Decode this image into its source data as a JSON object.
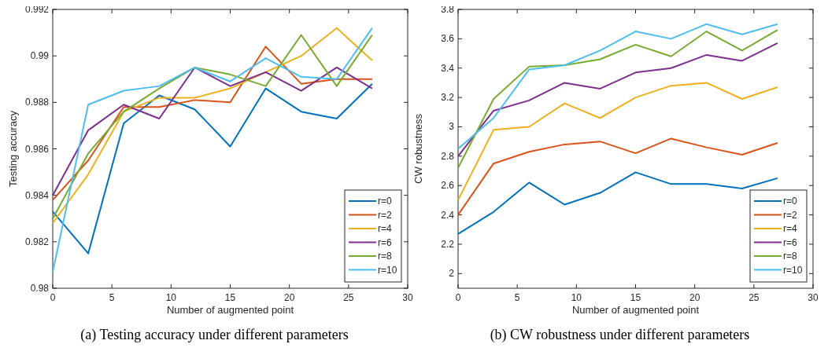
{
  "chart_data": [
    {
      "type": "line",
      "xlabel": "Number of augmented point",
      "ylabel": "Testing accuracy",
      "annotations": [
        "(a) Testing accuracy under different parameters"
      ],
      "x": [
        0,
        3,
        6,
        9,
        12,
        15,
        18,
        21,
        24,
        27
      ],
      "xlim": [
        0,
        30
      ],
      "xticks": [
        0,
        5,
        10,
        15,
        20,
        25,
        30
      ],
      "ylim": [
        0.98,
        0.992
      ],
      "yticks": [
        0.98,
        0.982,
        0.984,
        0.986,
        0.988,
        0.99,
        0.992
      ],
      "legend": "bottom right",
      "grid": false,
      "series": [
        {
          "name": "r=0",
          "color": "#0072bd",
          "values": [
            0.9833,
            0.9815,
            0.9871,
            0.9883,
            0.9877,
            0.9861,
            0.9886,
            0.9876,
            0.9873,
            0.9888
          ]
        },
        {
          "name": "r=2",
          "color": "#d95319",
          "values": [
            0.9838,
            0.9855,
            0.9878,
            0.9878,
            0.9881,
            0.988,
            0.9904,
            0.9888,
            0.989,
            0.989
          ]
        },
        {
          "name": "r=4",
          "color": "#edb120",
          "values": [
            0.9828,
            0.9849,
            0.9876,
            0.9882,
            0.9882,
            0.9886,
            0.9893,
            0.99,
            0.9912,
            0.9898
          ]
        },
        {
          "name": "r=6",
          "color": "#7e2f8e",
          "values": [
            0.984,
            0.9868,
            0.9879,
            0.9873,
            0.9895,
            0.9887,
            0.9893,
            0.9885,
            0.9895,
            0.9886
          ]
        },
        {
          "name": "r=8",
          "color": "#77ac30",
          "values": [
            0.983,
            0.9858,
            0.9876,
            0.9886,
            0.9895,
            0.9892,
            0.9887,
            0.9909,
            0.9887,
            0.9909
          ]
        },
        {
          "name": "r=10",
          "color": "#4dbeee",
          "values": [
            0.9807,
            0.9879,
            0.9885,
            0.9887,
            0.9895,
            0.9889,
            0.9899,
            0.9891,
            0.989,
            0.9912
          ]
        }
      ]
    },
    {
      "type": "line",
      "xlabel": "Number of augmented point",
      "ylabel": "CW robustness",
      "annotations": [
        "(b) CW robustness under different parameters"
      ],
      "x": [
        0,
        3,
        6,
        9,
        12,
        15,
        18,
        21,
        24,
        27
      ],
      "xlim": [
        0,
        30
      ],
      "xticks": [
        0,
        5,
        10,
        15,
        20,
        25,
        30
      ],
      "ylim": [
        1.9,
        3.8
      ],
      "yticks": [
        2,
        2.2,
        2.4,
        2.6,
        2.8,
        3,
        3.2,
        3.4,
        3.6,
        3.8
      ],
      "legend": "bottom right",
      "grid": false,
      "series": [
        {
          "name": "r=0",
          "color": "#0072bd",
          "values": [
            2.27,
            2.42,
            2.62,
            2.47,
            2.55,
            2.69,
            2.61,
            2.61,
            2.58,
            2.65
          ]
        },
        {
          "name": "r=2",
          "color": "#d95319",
          "values": [
            2.4,
            2.75,
            2.83,
            2.88,
            2.9,
            2.82,
            2.92,
            2.86,
            2.81,
            2.89
          ]
        },
        {
          "name": "r=4",
          "color": "#edb120",
          "values": [
            2.5,
            2.98,
            3.0,
            3.16,
            3.06,
            3.2,
            3.28,
            3.3,
            3.19,
            3.27
          ]
        },
        {
          "name": "r=6",
          "color": "#7e2f8e",
          "values": [
            2.8,
            3.11,
            3.18,
            3.3,
            3.26,
            3.37,
            3.4,
            3.49,
            3.45,
            3.57
          ]
        },
        {
          "name": "r=8",
          "color": "#77ac30",
          "values": [
            2.72,
            3.19,
            3.41,
            3.42,
            3.46,
            3.56,
            3.48,
            3.65,
            3.52,
            3.66
          ]
        },
        {
          "name": "r=10",
          "color": "#4dbeee",
          "values": [
            2.85,
            3.06,
            3.39,
            3.42,
            3.52,
            3.65,
            3.6,
            3.7,
            3.63,
            3.7
          ]
        }
      ]
    }
  ]
}
